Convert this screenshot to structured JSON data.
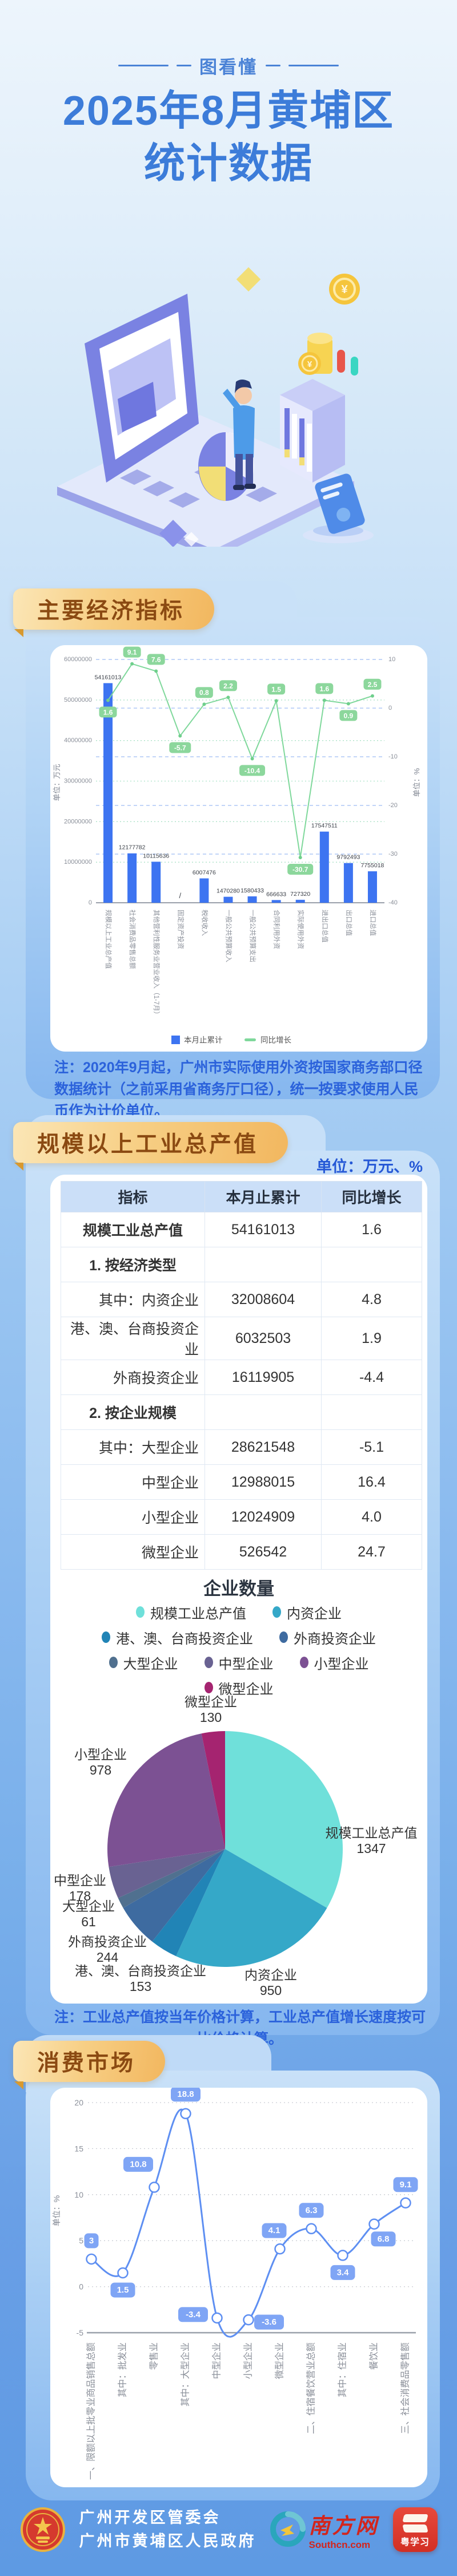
{
  "header": {
    "tagline": "图看懂",
    "title_line1": "2025年8月黄埔区",
    "title_line2": "统计数据"
  },
  "economic": {
    "badge": "主要经济指标",
    "note": "注：2020年9月起，广州市实际使用外资按国家商务部口径数据统计（之前采用省商务厅口径），统一按要求使用人民币作为计价单位。"
  },
  "industrial": {
    "badge": "规模以上工业总产值",
    "unit_label": "单位：万元、%",
    "table": {
      "headers": [
        "指标",
        "本月止累计",
        "同比增长"
      ],
      "rows": [
        {
          "label": "规模工业总产值",
          "value": "54161013",
          "growth": "1.6",
          "type": "main"
        },
        {
          "label": "1. 按经济类型",
          "value": "",
          "growth": "",
          "type": "group"
        },
        {
          "label": "其中：内资企业",
          "value": "32008604",
          "growth": "4.8",
          "type": "sub"
        },
        {
          "label": "港、澳、台商投资企业",
          "value": "6032503",
          "growth": "1.9",
          "type": "sub"
        },
        {
          "label": "外商投资企业",
          "value": "16119905",
          "growth": "-4.4",
          "type": "sub"
        },
        {
          "label": "2. 按企业规模",
          "value": "",
          "growth": "",
          "type": "group"
        },
        {
          "label": "其中：大型企业",
          "value": "28621548",
          "growth": "-5.1",
          "type": "sub"
        },
        {
          "label": "中型企业",
          "value": "12988015",
          "growth": "16.4",
          "type": "sub"
        },
        {
          "label": "小型企业",
          "value": "12024909",
          "growth": "4.0",
          "type": "sub"
        },
        {
          "label": "微型企业",
          "value": "526542",
          "growth": "24.7",
          "type": "sub"
        }
      ]
    },
    "pie_title": "企业数量",
    "note": "注：工业总产值按当年价格计算，工业总产值增长速度按可比价格计算。"
  },
  "consumer": {
    "badge": "消费市场"
  },
  "footer": {
    "org_line1": "广州开发区管委会",
    "org_line2": "广州市黄埔区人民政府",
    "southcn_name": "南方网",
    "southcn_domain": "Southcn.com",
    "app_name": "粤学习"
  },
  "colors": {
    "accent_blue": "#3C7CD9",
    "bar_blue": "#3D74F1",
    "line_green": "#7FD89B",
    "pill_green": "#8CD79C",
    "consumer_line": "#5E8FF2",
    "pill_blue": "#7FA5F5",
    "note_blue": "#2B62DB",
    "badge_text": "#8B4A12"
  },
  "chart_data": [
    {
      "type": "bar",
      "title": "主要经济指标",
      "categories": [
        "规模以上工业总产值",
        "社会消费品零售总额",
        "其他营利性服务业营业收入（1-7月）",
        "固定资产投资",
        "税收收入",
        "一般公共预算收入",
        "一般公共预算支出",
        "合同利用外资",
        "实际使用外资",
        "进出口总值",
        "出口总值",
        "进口总值"
      ],
      "series": [
        {
          "name": "本月止累计",
          "type": "bar",
          "color": "#3D74F1",
          "values": [
            54161013,
            12177782,
            10115636,
            null,
            6007476,
            1470280,
            1580433,
            666633,
            727320,
            17547511,
            9792493,
            7755018
          ]
        },
        {
          "name": "同比增长",
          "type": "line",
          "color": "#7FD89B",
          "values": [
            1.6,
            9.1,
            7.6,
            -5.7,
            0.8,
            2.2,
            -10.4,
            1.5,
            -30.7,
            1.6,
            0.9,
            2.5
          ]
        }
      ],
      "null_display": "/",
      "left_axis": {
        "label": "单位：万元",
        "min": 0,
        "max": 60000000,
        "ticks": [
          60000000,
          50000000,
          40000000,
          30000000,
          20000000,
          10000000,
          0
        ]
      },
      "right_axis": {
        "label": "单位：%",
        "min": -40,
        "max": 10,
        "ticks": [
          10,
          0,
          -10,
          -20,
          -30,
          -40
        ]
      },
      "legend_position": "bottom",
      "grid": true
    },
    {
      "type": "pie",
      "title": "企业数量",
      "items": [
        {
          "name": "规模工业总产值",
          "value": 1347,
          "color": "#6FE0DA"
        },
        {
          "name": "内资企业",
          "value": 950,
          "color": "#35A8C8"
        },
        {
          "name": "港、澳、台商投资企业",
          "value": 153,
          "color": "#2184B6"
        },
        {
          "name": "外商投资企业",
          "value": 244,
          "color": "#3E6BA0"
        },
        {
          "name": "大型企业",
          "value": 61,
          "color": "#50708F"
        },
        {
          "name": "中型企业",
          "value": 178,
          "color": "#696292"
        },
        {
          "name": "小型企业",
          "value": 978,
          "color": "#7C5193"
        },
        {
          "name": "微型企业",
          "value": 130,
          "color": "#A52470"
        }
      ],
      "legend_rows": [
        [
          0,
          1
        ],
        [
          2,
          3
        ],
        [
          4,
          5,
          6
        ],
        [
          7
        ]
      ]
    },
    {
      "type": "line",
      "title": "消费市场",
      "ylabel": "单位：%",
      "ylim": [
        -5,
        20
      ],
      "yticks": [
        20,
        15,
        10,
        5,
        0,
        -5
      ],
      "color": "#5E8FF2",
      "categories": [
        "一、限额以上批零业商品销售总额",
        "其中：批发业",
        "零售业",
        "其中：大型企业",
        "中型企业",
        "小型企业",
        "微型企业",
        "二、住宿餐饮营业总额",
        "其中：住宿业",
        "餐饮业",
        "三、社会消费品零售额"
      ],
      "values": [
        3,
        1.5,
        10.8,
        18.8,
        -3.4,
        -3.6,
        4.1,
        6.3,
        3.4,
        6.8,
        9.1
      ]
    }
  ]
}
